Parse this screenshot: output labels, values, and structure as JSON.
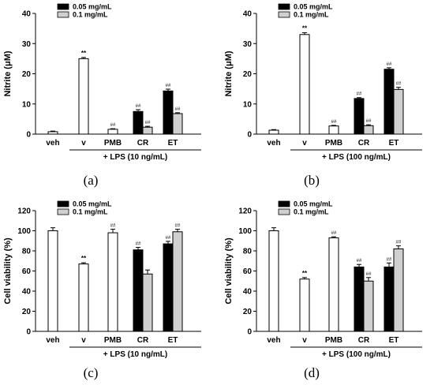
{
  "chart_data": [
    {
      "type": "bar",
      "panel_label": "(a)",
      "ylabel": "Nitrite (μM)",
      "ylim": [
        0,
        40
      ],
      "yticks": [
        0,
        10,
        20,
        30,
        40
      ],
      "categories": [
        "veh",
        "v",
        "PMB",
        "CR",
        "ET"
      ],
      "group_label": "+ LPS (10 ng/mL)",
      "legend": [
        "0.05 mg/mL",
        "0.1 mg/mL"
      ],
      "legend_placement": "top-left",
      "bars": [
        {
          "category": "veh",
          "style": "open",
          "value": 0.8,
          "error": 0.2,
          "sig": ""
        },
        {
          "category": "v",
          "style": "open",
          "value": 25.0,
          "error": 0.4,
          "sig": "**"
        },
        {
          "category": "PMB",
          "style": "open",
          "value": 1.6,
          "error": 0.2,
          "sig": "##"
        },
        {
          "category": "CR",
          "style": "0.05 mg/mL",
          "value": 7.5,
          "error": 0.6,
          "sig": "##"
        },
        {
          "category": "CR",
          "style": "0.1 mg/mL",
          "value": 2.3,
          "error": 0.3,
          "sig": "##"
        },
        {
          "category": "ET",
          "style": "0.05 mg/mL",
          "value": 14.3,
          "error": 0.6,
          "sig": "##"
        },
        {
          "category": "ET",
          "style": "0.1 mg/mL",
          "value": 6.8,
          "error": 0.3,
          "sig": "##"
        }
      ]
    },
    {
      "type": "bar",
      "panel_label": "(b)",
      "ylabel": "Nitrite (μM)",
      "ylim": [
        0,
        40
      ],
      "yticks": [
        0,
        10,
        20,
        30,
        40
      ],
      "categories": [
        "veh",
        "v",
        "PMB",
        "CR",
        "ET"
      ],
      "group_label": "+ LPS (100 ng/mL)",
      "legend": [
        "0.05 mg/mL",
        "0.1 mg/mL"
      ],
      "legend_placement": "top-left",
      "bars": [
        {
          "category": "veh",
          "style": "open",
          "value": 1.3,
          "error": 0.2,
          "sig": ""
        },
        {
          "category": "v",
          "style": "open",
          "value": 33.0,
          "error": 0.6,
          "sig": "**"
        },
        {
          "category": "PMB",
          "style": "open",
          "value": 2.7,
          "error": 0.2,
          "sig": "##"
        },
        {
          "category": "CR",
          "style": "0.05 mg/mL",
          "value": 11.8,
          "error": 0.3,
          "sig": "##"
        },
        {
          "category": "CR",
          "style": "0.1 mg/mL",
          "value": 2.8,
          "error": 0.3,
          "sig": "##"
        },
        {
          "category": "ET",
          "style": "0.05 mg/mL",
          "value": 21.5,
          "error": 0.5,
          "sig": "##"
        },
        {
          "category": "ET",
          "style": "0.1 mg/mL",
          "value": 14.8,
          "error": 0.7,
          "sig": "##"
        }
      ]
    },
    {
      "type": "bar",
      "panel_label": "(c)",
      "ylabel": "Cell viability (%)",
      "ylim": [
        0,
        120
      ],
      "yticks": [
        0,
        20,
        40,
        60,
        80,
        100,
        120
      ],
      "categories": [
        "veh",
        "v",
        "PMB",
        "CR",
        "ET"
      ],
      "group_label": "+ LPS (10 ng/mL)",
      "legend": [
        "0.05 mg/mL",
        "0.1 mg/mL"
      ],
      "legend_placement": "top-left",
      "bars": [
        {
          "category": "veh",
          "style": "open",
          "value": 100,
          "error": 3,
          "sig": ""
        },
        {
          "category": "v",
          "style": "open",
          "value": 67,
          "error": 1.2,
          "sig": "**"
        },
        {
          "category": "PMB",
          "style": "open",
          "value": 98,
          "error": 3.5,
          "sig": "##"
        },
        {
          "category": "CR",
          "style": "0.05 mg/mL",
          "value": 81,
          "error": 2.5,
          "sig": "##"
        },
        {
          "category": "CR",
          "style": "0.1 mg/mL",
          "value": 57,
          "error": 4,
          "sig": ""
        },
        {
          "category": "ET",
          "style": "0.05 mg/mL",
          "value": 87,
          "error": 2.5,
          "sig": "##"
        },
        {
          "category": "ET",
          "style": "0.1 mg/mL",
          "value": 99,
          "error": 2.5,
          "sig": "##"
        }
      ]
    },
    {
      "type": "bar",
      "panel_label": "(d)",
      "ylabel": "Cell viability (%)",
      "ylim": [
        0,
        120
      ],
      "yticks": [
        0,
        20,
        40,
        60,
        80,
        100,
        120
      ],
      "categories": [
        "veh",
        "v",
        "PMB",
        "CR",
        "ET"
      ],
      "group_label": "+ LPS (100 ng/mL)",
      "legend": [
        "0.05 mg/mL",
        "0.1 mg/mL"
      ],
      "legend_placement": "top-left",
      "bars": [
        {
          "category": "veh",
          "style": "open",
          "value": 100,
          "error": 3,
          "sig": ""
        },
        {
          "category": "v",
          "style": "open",
          "value": 52,
          "error": 1.5,
          "sig": "**"
        },
        {
          "category": "PMB",
          "style": "open",
          "value": 93,
          "error": 1,
          "sig": "##"
        },
        {
          "category": "CR",
          "style": "0.05 mg/mL",
          "value": 64,
          "error": 2.5,
          "sig": "##"
        },
        {
          "category": "CR",
          "style": "0.1 mg/mL",
          "value": 50,
          "error": 3.5,
          "sig": "##"
        },
        {
          "category": "ET",
          "style": "0.05 mg/mL",
          "value": 64,
          "error": 4,
          "sig": "##"
        },
        {
          "category": "ET",
          "style": "0.1 mg/mL",
          "value": 82,
          "error": 3,
          "sig": "##"
        }
      ]
    }
  ],
  "colors": {
    "open_fill": "#ffffff",
    "dose_low_fill": "#000000",
    "dose_high_fill": "#d0d0d0",
    "stroke": "#000000"
  }
}
